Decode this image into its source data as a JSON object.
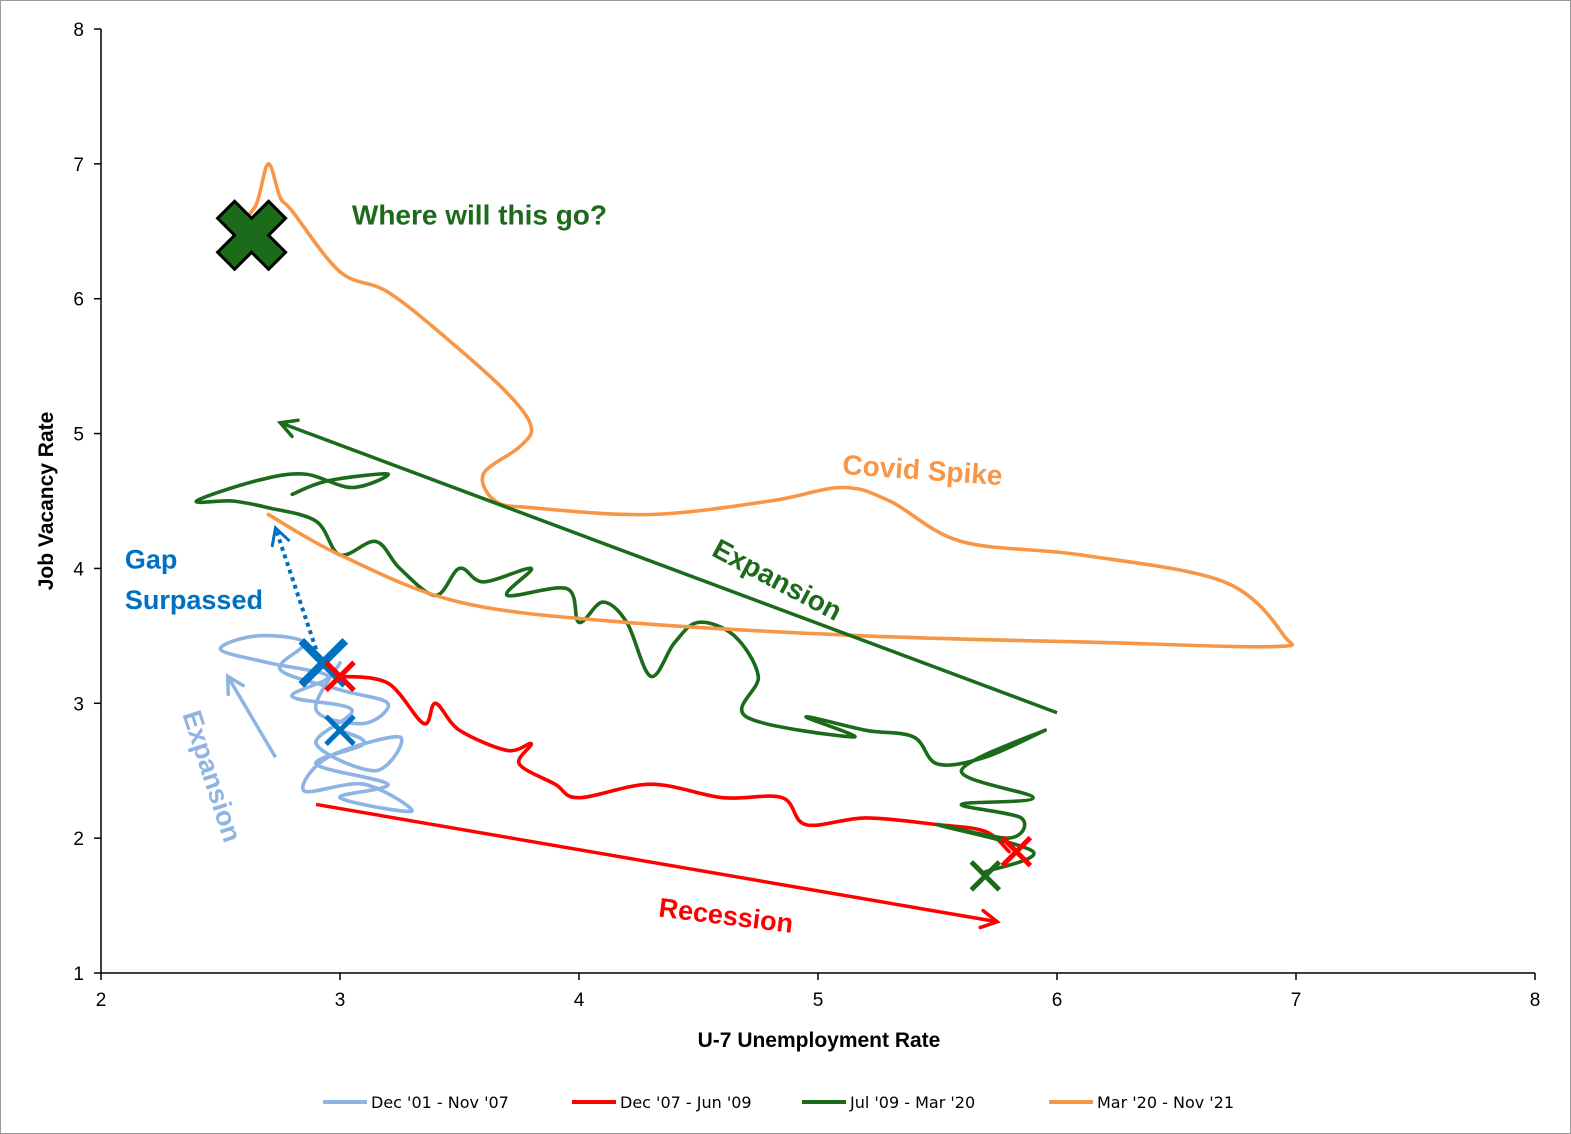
{
  "chart_data": {
    "type": "line",
    "xlabel": "U-7 Unemployment Rate",
    "ylabel": "Job Vacancy Rate",
    "xlim": [
      2,
      8
    ],
    "ylim": [
      1,
      8
    ],
    "x_ticks": [
      "2",
      "3",
      "4",
      "5",
      "6",
      "7",
      "8"
    ],
    "y_ticks": [
      "1",
      "2",
      "3",
      "4",
      "5",
      "6",
      "7",
      "8"
    ],
    "grid": false,
    "legend_position": "bottom",
    "series": [
      {
        "name": "Dec '01 - Nov '07",
        "color": "#8DB4E2",
        "points": [
          [
            3.0,
            2.8
          ],
          [
            3.1,
            2.7
          ],
          [
            2.9,
            2.55
          ],
          [
            3.2,
            2.4
          ],
          [
            3.0,
            2.3
          ],
          [
            3.3,
            2.2
          ],
          [
            3.1,
            2.4
          ],
          [
            2.85,
            2.35
          ],
          [
            2.95,
            2.6
          ],
          [
            3.25,
            2.75
          ],
          [
            3.15,
            2.5
          ],
          [
            2.9,
            2.7
          ],
          [
            3.05,
            2.95
          ],
          [
            2.8,
            3.05
          ],
          [
            2.95,
            3.2
          ],
          [
            2.7,
            3.3
          ],
          [
            2.5,
            3.4
          ],
          [
            2.65,
            3.5
          ],
          [
            2.85,
            3.45
          ],
          [
            2.75,
            3.25
          ],
          [
            3.0,
            3.1
          ],
          [
            3.2,
            3.0
          ],
          [
            3.1,
            2.85
          ],
          [
            2.9,
            2.95
          ],
          [
            3.0,
            3.3
          ]
        ]
      },
      {
        "name": "Dec '07 - Jun '09",
        "color": "#FF0000",
        "points": [
          [
            3.0,
            3.2
          ],
          [
            3.2,
            3.15
          ],
          [
            3.35,
            2.85
          ],
          [
            3.4,
            3.0
          ],
          [
            3.5,
            2.8
          ],
          [
            3.7,
            2.65
          ],
          [
            3.8,
            2.7
          ],
          [
            3.75,
            2.55
          ],
          [
            3.9,
            2.4
          ],
          [
            4.0,
            2.3
          ],
          [
            4.3,
            2.4
          ],
          [
            4.6,
            2.3
          ],
          [
            4.85,
            2.3
          ],
          [
            4.95,
            2.1
          ],
          [
            5.2,
            2.15
          ],
          [
            5.5,
            2.1
          ],
          [
            5.7,
            2.05
          ],
          [
            5.8,
            1.9
          ]
        ]
      },
      {
        "name": "Jul '09 - Mar '20",
        "color": "#1B6B1B",
        "points": [
          [
            5.7,
            1.75
          ],
          [
            5.9,
            1.9
          ],
          [
            5.5,
            2.1
          ],
          [
            5.8,
            2.0
          ],
          [
            5.85,
            2.15
          ],
          [
            5.6,
            2.25
          ],
          [
            5.9,
            2.3
          ],
          [
            5.6,
            2.5
          ],
          [
            5.95,
            2.8
          ],
          [
            5.7,
            2.6
          ],
          [
            5.5,
            2.55
          ],
          [
            5.4,
            2.75
          ],
          [
            5.2,
            2.8
          ],
          [
            4.95,
            2.9
          ],
          [
            5.15,
            2.75
          ],
          [
            4.7,
            2.9
          ],
          [
            4.75,
            3.2
          ],
          [
            4.65,
            3.5
          ],
          [
            4.5,
            3.6
          ],
          [
            4.4,
            3.45
          ],
          [
            4.3,
            3.2
          ],
          [
            4.2,
            3.6
          ],
          [
            4.1,
            3.75
          ],
          [
            4.0,
            3.6
          ],
          [
            3.95,
            3.85
          ],
          [
            3.7,
            3.8
          ],
          [
            3.8,
            4.0
          ],
          [
            3.6,
            3.9
          ],
          [
            3.5,
            4.0
          ],
          [
            3.4,
            3.8
          ],
          [
            3.25,
            4.0
          ],
          [
            3.15,
            4.2
          ],
          [
            3.0,
            4.1
          ],
          [
            2.9,
            4.35
          ],
          [
            2.7,
            4.45
          ],
          [
            2.55,
            4.5
          ],
          [
            2.4,
            4.5
          ],
          [
            2.65,
            4.65
          ],
          [
            2.85,
            4.7
          ],
          [
            3.05,
            4.6
          ],
          [
            3.2,
            4.7
          ],
          [
            2.95,
            4.65
          ],
          [
            2.8,
            4.55
          ]
        ]
      },
      {
        "name": "Mar '20 - Nov '21",
        "color": "#F79646",
        "points": [
          [
            2.7,
            4.4
          ],
          [
            3.0,
            4.1
          ],
          [
            3.5,
            3.75
          ],
          [
            4.2,
            3.6
          ],
          [
            5.2,
            3.5
          ],
          [
            6.2,
            3.45
          ],
          [
            6.9,
            3.42
          ],
          [
            6.95,
            3.5
          ],
          [
            6.7,
            3.9
          ],
          [
            6.1,
            4.1
          ],
          [
            5.6,
            4.2
          ],
          [
            5.3,
            4.5
          ],
          [
            5.1,
            4.6
          ],
          [
            4.8,
            4.5
          ],
          [
            4.3,
            4.4
          ],
          [
            3.8,
            4.45
          ],
          [
            3.65,
            4.5
          ],
          [
            3.6,
            4.7
          ],
          [
            3.75,
            4.9
          ],
          [
            3.8,
            5.05
          ],
          [
            3.7,
            5.3
          ],
          [
            3.45,
            5.7
          ],
          [
            3.2,
            6.05
          ],
          [
            3.0,
            6.2
          ],
          [
            2.8,
            6.65
          ],
          [
            2.75,
            6.75
          ],
          [
            2.7,
            7.0
          ],
          [
            2.65,
            6.7
          ],
          [
            2.58,
            6.55
          ]
        ]
      }
    ],
    "markers": [
      {
        "series": "Jul '09 - Mar '20",
        "x": 2.63,
        "y": 6.47,
        "size": "large"
      },
      {
        "series": "Dec '01 - Nov '07",
        "x": 2.93,
        "y": 3.3,
        "size": "medium"
      },
      {
        "series": "Dec '01 - Nov '07",
        "x": 3.0,
        "y": 2.8,
        "size": "small"
      },
      {
        "series": "Dec '07 - Jun '09",
        "x": 3.0,
        "y": 3.2,
        "size": "small"
      },
      {
        "series": "Dec '07 - Jun '09",
        "x": 5.83,
        "y": 1.9,
        "size": "small"
      },
      {
        "series": "Jul '09 - Mar '20",
        "x": 5.7,
        "y": 1.72,
        "size": "small"
      }
    ],
    "arrows": [
      {
        "from": [
          6.0,
          2.93
        ],
        "to": [
          2.75,
          5.08
        ],
        "color": "#1B6B1B",
        "style": "solid"
      },
      {
        "from": [
          2.9,
          2.25
        ],
        "to": [
          5.75,
          1.38
        ],
        "color": "#FF0000",
        "style": "solid"
      },
      {
        "from": [
          2.73,
          2.6
        ],
        "to": [
          2.53,
          3.2
        ],
        "color": "#8DB4E2",
        "style": "solid"
      },
      {
        "from": [
          2.9,
          3.4
        ],
        "to": [
          2.73,
          4.3
        ],
        "color": "#0070C0",
        "style": "dotted"
      }
    ],
    "annotations": [
      {
        "text": "Where will this go?",
        "x": 3.05,
        "y": 6.55,
        "color": "#1B6B1B",
        "rotate": 0,
        "size": 28
      },
      {
        "text": "Covid Spike",
        "x": 5.1,
        "y": 4.7,
        "color": "#F79646",
        "rotate": 4,
        "size": 28
      },
      {
        "text": "Expansion",
        "x": 4.55,
        "y": 4.1,
        "color": "#1B6B1B",
        "rotate": 28,
        "size": 28
      },
      {
        "text": "Gap",
        "x": 2.1,
        "y": 4.0,
        "color": "#0070C0",
        "rotate": 0,
        "size": 27
      },
      {
        "text": "Surpassed",
        "x": 2.1,
        "y": 3.7,
        "color": "#0070C0",
        "rotate": 0,
        "size": 27
      },
      {
        "text": "Recession",
        "x": 4.33,
        "y": 1.42,
        "color": "#FF0000",
        "rotate": 7,
        "size": 27
      },
      {
        "text": "Expansion",
        "x": 2.34,
        "y": 2.92,
        "color": "#8DB4E2",
        "rotate": 72,
        "size": 27
      }
    ]
  }
}
